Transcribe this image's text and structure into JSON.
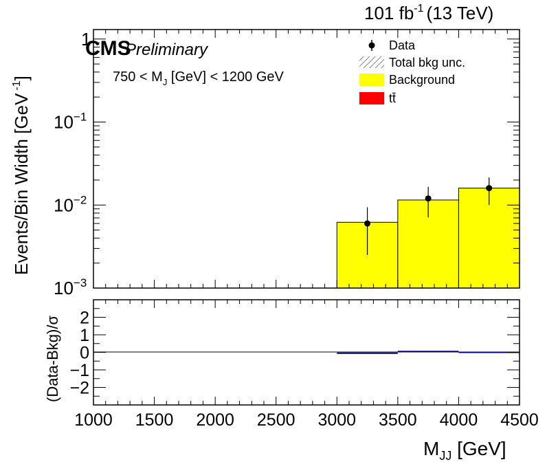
{
  "header": {
    "lumi_value": "101 fb",
    "lumi_exp": "-1",
    "energy": "(13 TeV)"
  },
  "labels": {
    "cms": "CMS",
    "preliminary": "Preliminary",
    "selection_pre": "750 < M",
    "selection_sub": "J",
    "selection_post": " [GeV] < 1200 GeV"
  },
  "legend": {
    "data": "Data",
    "unc": "Total bkg unc.",
    "background": "Background",
    "ttbar": "tt̄"
  },
  "colors": {
    "background_fill": "#ffff00",
    "ttbar_fill": "#ff0000",
    "pull_line": "#00008b",
    "data_marker": "#000000"
  },
  "chart_data": [
    {
      "type": "bar",
      "panel": "main",
      "ylabel_main": "Events/Bin Width [GeV",
      "ylabel_exp": "-1",
      "y_scale": "log",
      "ylim": [
        0.001,
        1.3
      ],
      "xlim": [
        1000,
        4500
      ],
      "y_ticks": [
        {
          "value": 0.001,
          "label": "10",
          "exp": "−3"
        },
        {
          "value": 0.01,
          "label": "10",
          "exp": "−2"
        },
        {
          "value": 0.1,
          "label": "10",
          "exp": "−1"
        },
        {
          "value": 1,
          "label": "1",
          "exp": ""
        }
      ],
      "bins": [
        {
          "low": 1000,
          "high": 1500
        },
        {
          "low": 1500,
          "high": 2000
        },
        {
          "low": 2000,
          "high": 2500
        },
        {
          "low": 2500,
          "high": 3000
        },
        {
          "low": 3000,
          "high": 3500
        },
        {
          "low": 3500,
          "high": 4000
        },
        {
          "low": 4000,
          "high": 4500
        }
      ],
      "series": [
        {
          "name": "Background",
          "values": [
            0,
            0,
            0,
            0,
            0.0062,
            0.0115,
            0.016
          ]
        },
        {
          "name": "tt̄",
          "values": [
            0,
            0,
            0,
            0,
            0,
            0,
            0
          ]
        }
      ],
      "data_points": [
        {
          "x": 3250,
          "y": 0.006,
          "err_low": 0.0035,
          "err_high": 0.0034
        },
        {
          "x": 3750,
          "y": 0.012,
          "err_low": 0.0049,
          "err_high": 0.0046
        },
        {
          "x": 4250,
          "y": 0.016,
          "err_low": 0.006,
          "err_high": 0.0055
        }
      ]
    },
    {
      "type": "bar",
      "panel": "ratio",
      "ylabel": "(Data-Bkg)/σ",
      "xlabel_main": "M",
      "xlabel_sub": "JJ",
      "xlabel_post": " [GeV]",
      "ylim": [
        -3,
        3
      ],
      "xlim": [
        1000,
        4500
      ],
      "y_ticks": [
        {
          "value": 2,
          "label": "2"
        },
        {
          "value": 1,
          "label": "1"
        },
        {
          "value": 0,
          "label": "0"
        },
        {
          "value": -1,
          "label": "−1"
        },
        {
          "value": -2,
          "label": "−2"
        }
      ],
      "x_ticks": [
        {
          "value": 1000,
          "label": "1000"
        },
        {
          "value": 1500,
          "label": "1500"
        },
        {
          "value": 2000,
          "label": "2000"
        },
        {
          "value": 2500,
          "label": "2500"
        },
        {
          "value": 3000,
          "label": "3000"
        },
        {
          "value": 3500,
          "label": "3500"
        },
        {
          "value": 4000,
          "label": "4000"
        },
        {
          "value": 4500,
          "label": "4500"
        }
      ],
      "pulls": [
        {
          "low": 3000,
          "high": 3500,
          "value": -0.05
        },
        {
          "low": 3500,
          "high": 4000,
          "value": 0.05
        },
        {
          "low": 4000,
          "high": 4500,
          "value": 0.0
        }
      ]
    }
  ]
}
